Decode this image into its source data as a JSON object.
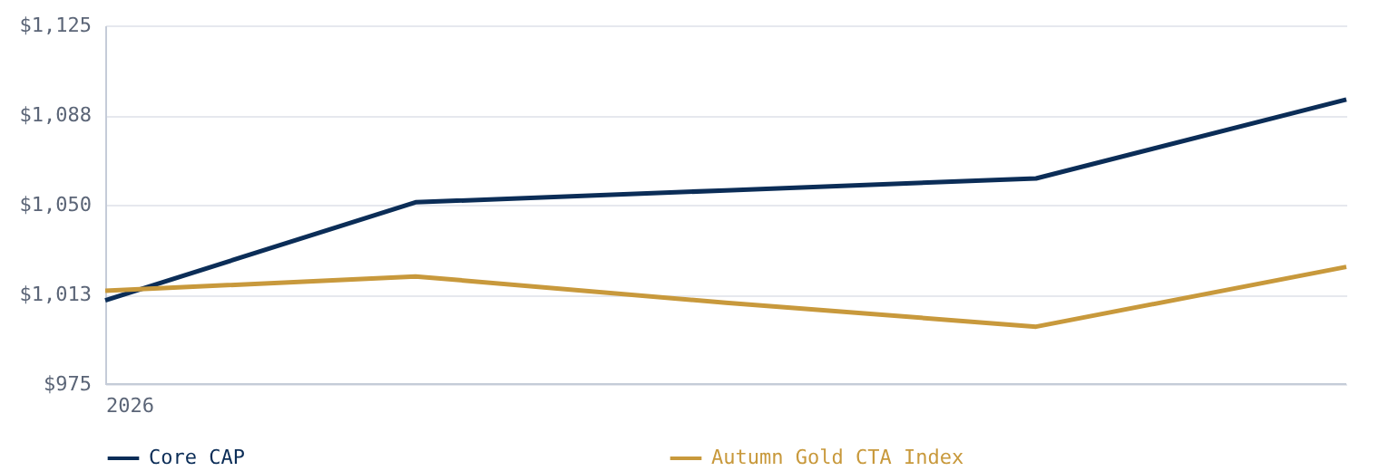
{
  "chart_data": {
    "type": "line",
    "categories": [
      "2026",
      null,
      null,
      null,
      null
    ],
    "ylim": [
      975,
      1125
    ],
    "yticks": [
      {
        "value": 975,
        "label": "$975"
      },
      {
        "value": 1012.5,
        "label": "$1,013"
      },
      {
        "value": 1050,
        "label": "$1,050"
      },
      {
        "value": 1087.5,
        "label": "$1,088"
      },
      {
        "value": 1125,
        "label": "$1,125"
      }
    ],
    "series": [
      {
        "name": "Core CAP",
        "color": "#0b2d57",
        "values": [
          1010,
          1051,
          1056,
          1061,
          1094
        ]
      },
      {
        "name": "Autumn Gold CTA Index",
        "color": "#c8993c",
        "values": [
          1014,
          1020,
          1009,
          999,
          1024
        ]
      }
    ],
    "grid": "y",
    "legend": "bottom",
    "marker": "none",
    "line_style": "solid"
  }
}
